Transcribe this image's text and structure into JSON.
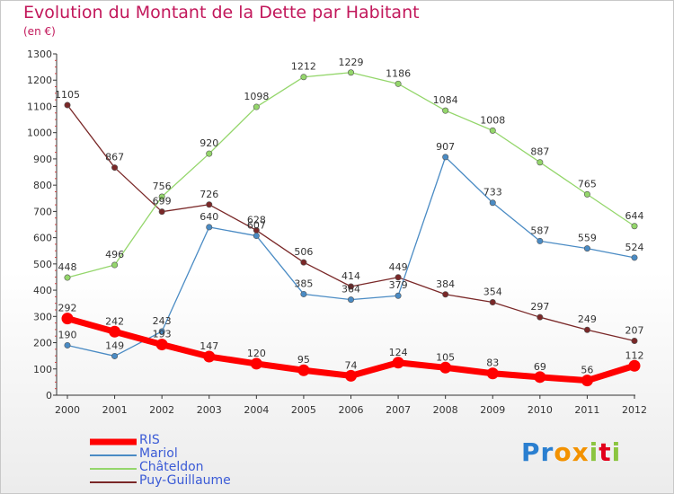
{
  "chart_data": {
    "type": "line",
    "title": "Evolution du Montant de la Dette par Habitant",
    "subtitle": "(en €)",
    "x": [
      "2000",
      "2001",
      "2002",
      "2003",
      "2004",
      "2005",
      "2006",
      "2007",
      "2008",
      "2009",
      "2010",
      "2011",
      "2012"
    ],
    "ylim": [
      0,
      1300
    ],
    "yticks": [
      0,
      100,
      200,
      300,
      400,
      500,
      600,
      700,
      800,
      900,
      1000,
      1100,
      1200,
      1300
    ],
    "grid": false,
    "legend_position": "bottom-left",
    "series": [
      {
        "name": "Puy-Guillaume",
        "color": "#7a2828",
        "values": [
          1105,
          867,
          699,
          726,
          628,
          506,
          414,
          449,
          384,
          354,
          297,
          249,
          207
        ]
      },
      {
        "name": "Châteldon",
        "color": "#94d66b",
        "values": [
          448,
          496,
          756,
          920,
          1098,
          1212,
          1229,
          1186,
          1084,
          1008,
          887,
          765,
          644
        ]
      },
      {
        "name": "Mariol",
        "color": "#4a8bc4",
        "values": [
          190,
          149,
          243,
          640,
          607,
          385,
          364,
          379,
          907,
          733,
          587,
          559,
          524
        ]
      },
      {
        "name": "RIS",
        "color": "#ff0000",
        "values": [
          292,
          242,
          193,
          147,
          120,
          95,
          74,
          124,
          105,
          83,
          69,
          56,
          112
        ]
      }
    ],
    "data_labels": {
      "Puy-Guillaume": [
        "1105",
        "867",
        "699",
        "726",
        "628",
        "506",
        "414",
        "449",
        "384",
        "354",
        "297",
        "249",
        "207"
      ],
      "Châteldon": [
        "448",
        "496",
        "756",
        "920",
        "1098",
        "1212",
        "1229",
        "1186",
        "1084",
        "1008",
        "887",
        "765",
        "644"
      ],
      "Mariol": [
        "190",
        "149",
        "243",
        "640",
        "607",
        "385",
        "364",
        "379",
        "907",
        "733",
        "587",
        "559",
        "524"
      ],
      "RIS": [
        "292",
        "242",
        "193",
        "147",
        "120",
        "95",
        "74",
        "124",
        "105",
        "83",
        "69",
        "56",
        "112"
      ]
    }
  },
  "legend": [
    "RIS",
    "Mariol",
    "Châteldon",
    "Puy-Guillaume"
  ],
  "logo": {
    "letters": [
      "P",
      "r",
      "o",
      "x",
      "i",
      "t",
      "i"
    ],
    "colors": [
      "#2a7fd0",
      "#2a7fd0",
      "#f39200",
      "#f39200",
      "#8bc53f",
      "#e2001a",
      "#8bc53f"
    ]
  }
}
